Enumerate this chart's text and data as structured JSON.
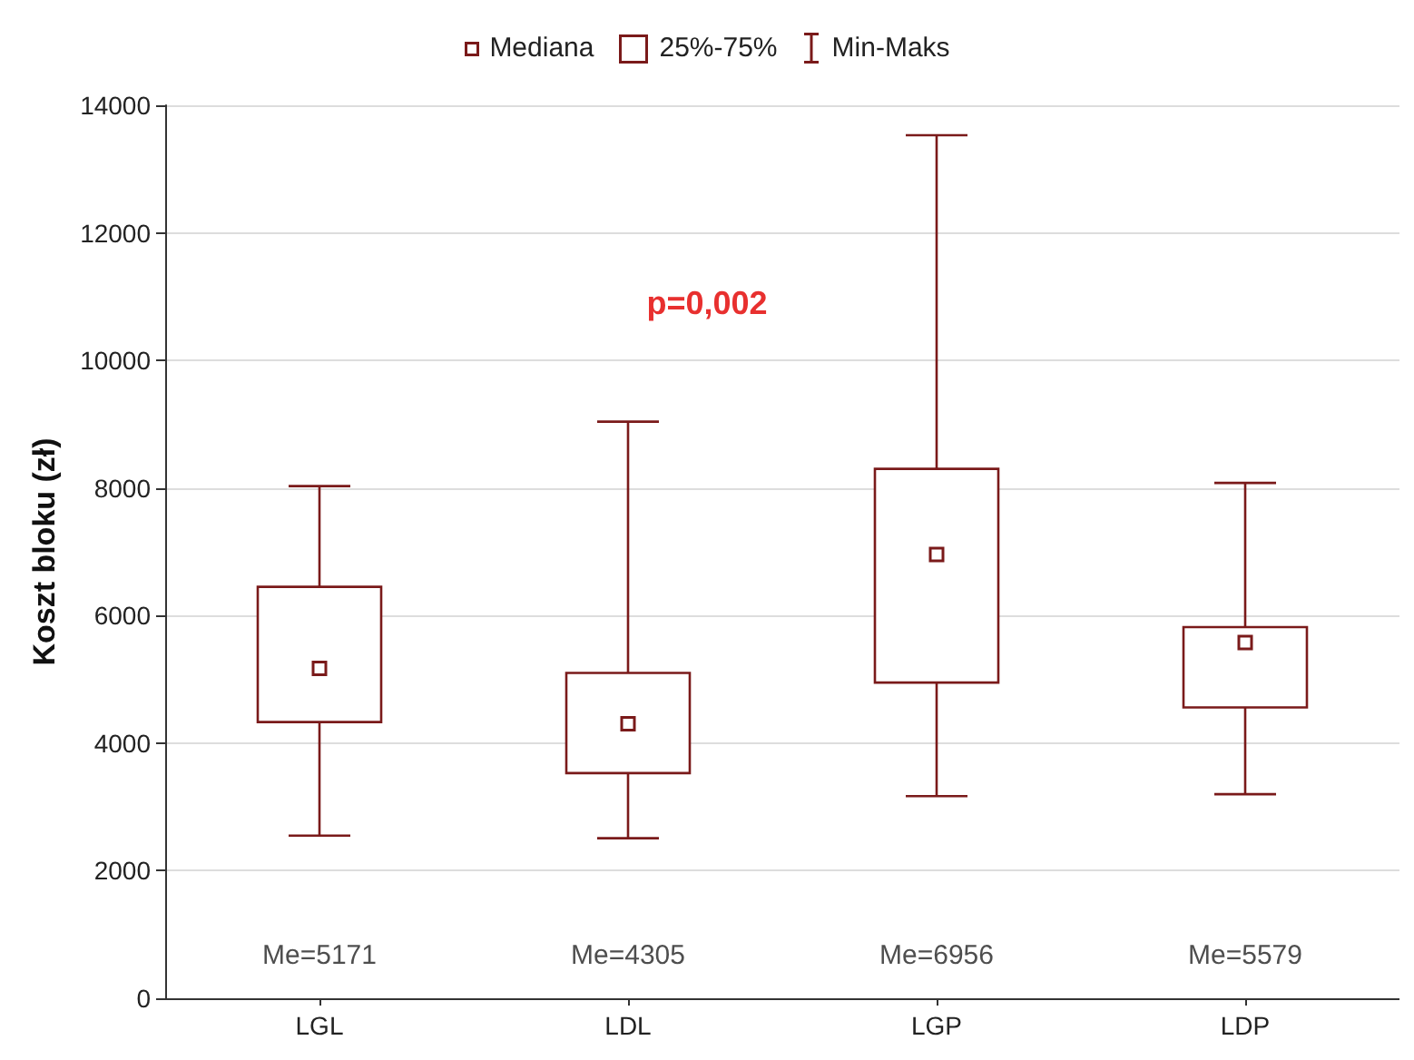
{
  "chart_data": {
    "type": "box",
    "ylabel": "Koszt bloku (zł)",
    "categories": [
      "LGL",
      "LDL",
      "LGP",
      "LDP"
    ],
    "series": [
      {
        "name": "25%-75%",
        "color": "#7a1a1a",
        "boxes": [
          {
            "low": 2550,
            "q1": 4330,
            "median": 5171,
            "q3": 6450,
            "high": 8030
          },
          {
            "low": 2510,
            "q1": 3530,
            "median": 4305,
            "q3": 5100,
            "high": 9040
          },
          {
            "low": 3170,
            "q1": 4950,
            "median": 6956,
            "q3": 8300,
            "high": 13530
          },
          {
            "low": 3200,
            "q1": 4560,
            "median": 5579,
            "q3": 5820,
            "high": 8080
          }
        ]
      }
    ],
    "ylim": [
      0,
      14000
    ],
    "yticks": [
      0,
      2000,
      4000,
      6000,
      8000,
      10000,
      12000,
      14000
    ],
    "grid": "y",
    "legend": "top",
    "annotations": [
      "Me=5171",
      "Me=4305",
      "Me=6956",
      "Me=5579",
      "p=0,002",
      "Mediana",
      "Min-Maks"
    ]
  }
}
